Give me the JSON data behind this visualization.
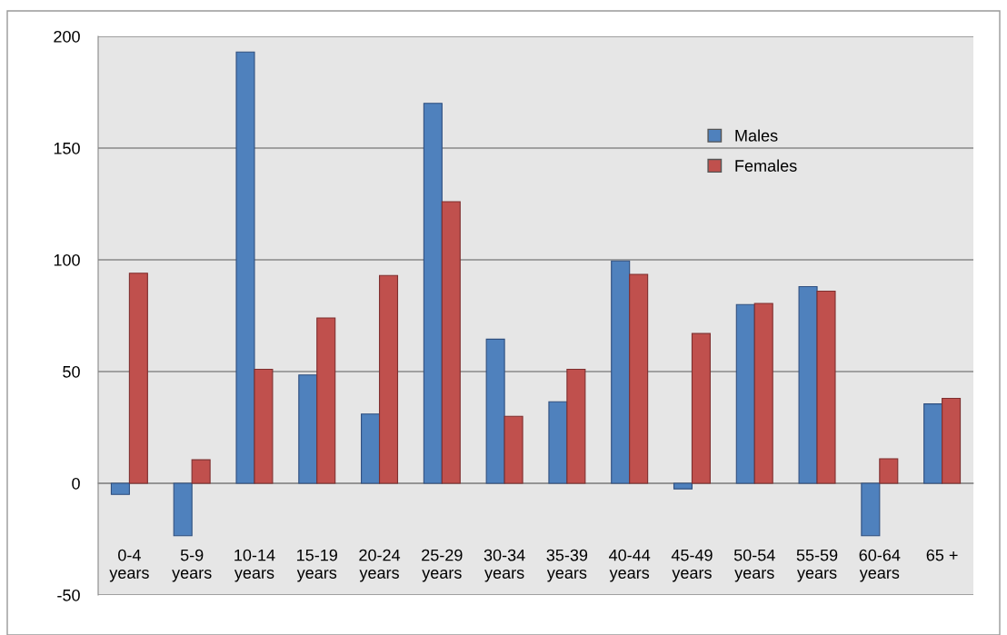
{
  "chart_data": {
    "type": "bar",
    "categories": [
      "0-4\nyears",
      "5-9\nyears",
      "10-14\nyears",
      "15-19\nyears",
      "20-24\nyears",
      "25-29\nyears",
      "30-34\nyears",
      "35-39\nyears",
      "40-44\nyears",
      "45-49\nyears",
      "50-54\nyears",
      "55-59\nyears",
      "60-64\nyears",
      "65 +"
    ],
    "series": [
      {
        "name": "Males",
        "color": "#4f81bd",
        "values": [
          -5,
          -23.5,
          193,
          48.5,
          31,
          170,
          64.5,
          36.5,
          99.5,
          -2.5,
          80,
          88,
          -23.5,
          35.5
        ]
      },
      {
        "name": "Females",
        "color": "#c0504d",
        "values": [
          94,
          10.5,
          51,
          74,
          93,
          126,
          30,
          51,
          93.5,
          67,
          80.5,
          86,
          11,
          38
        ]
      }
    ],
    "ylim": [
      -50,
      200
    ],
    "yticks": [
      -50,
      0,
      50,
      100,
      150,
      200
    ],
    "grid": "y",
    "legend": "top right"
  }
}
